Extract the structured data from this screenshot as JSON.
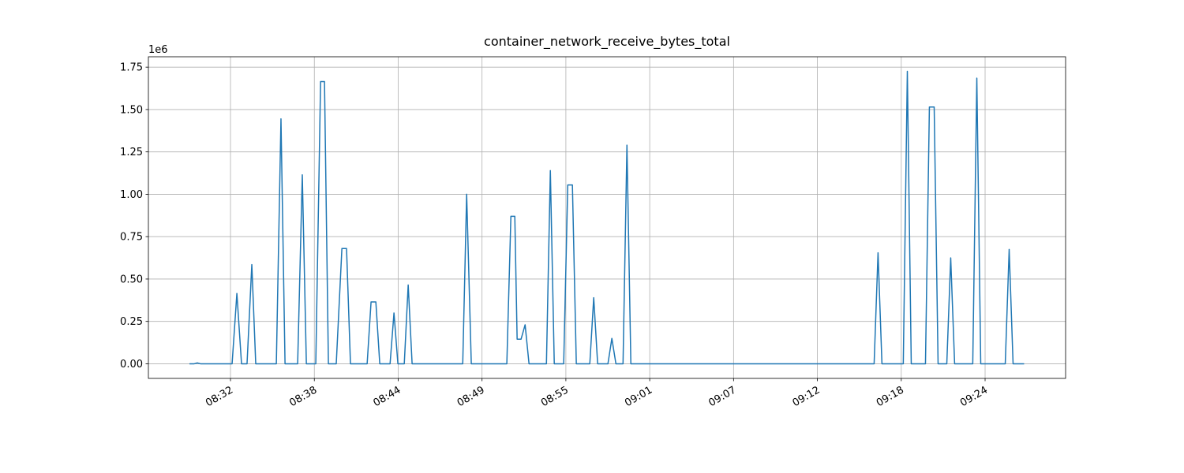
{
  "chart_data": {
    "type": "line",
    "title": "container_network_receive_bytes_total",
    "y_offset_label": "1e6",
    "x": [
      509.67,
      510.0,
      510.21,
      510.43,
      512.61,
      512.94,
      513.26,
      513.64,
      513.97,
      514.24,
      515.66,
      515.98,
      516.26,
      517.13,
      517.45,
      517.73,
      518.38,
      518.71,
      518.98,
      519.25,
      519.79,
      520.18,
      520.5,
      520.77,
      521.92,
      522.19,
      522.52,
      522.79,
      523.5,
      523.77,
      524.04,
      524.48,
      524.75,
      525.02,
      528.51,
      528.78,
      529.1,
      531.55,
      531.83,
      532.1,
      532.26,
      532.53,
      532.81,
      533.08,
      534.28,
      534.55,
      534.82,
      535.47,
      535.75,
      536.07,
      536.34,
      537.27,
      537.54,
      537.81,
      538.52,
      538.79,
      539.07,
      539.56,
      539.83,
      540.1,
      556.87,
      557.14,
      557.41,
      558.88,
      559.16,
      559.43,
      560.41,
      560.68,
      561.01,
      561.28,
      561.88,
      562.15,
      562.42,
      563.67,
      563.95,
      564.22,
      565.91,
      566.18,
      566.45,
      567.21
    ],
    "series": [
      {
        "color": "#1f77b4",
        "values": [
          0,
          0,
          5000,
          0,
          0,
          415000,
          0,
          0,
          585000,
          0,
          0,
          1445000,
          0,
          0,
          1115000,
          0,
          0,
          1665000,
          1665000,
          0,
          0,
          680000,
          680000,
          0,
          0,
          365000,
          365000,
          0,
          0,
          300000,
          0,
          0,
          465000,
          0,
          0,
          1000000,
          0,
          0,
          870000,
          870000,
          145000,
          145000,
          230000,
          0,
          0,
          1140000,
          0,
          0,
          1055000,
          1055000,
          0,
          0,
          390000,
          0,
          0,
          150000,
          0,
          0,
          1290000,
          0,
          0,
          655000,
          0,
          0,
          1725000,
          0,
          0,
          1515000,
          1515000,
          0,
          0,
          625000,
          0,
          0,
          1685000,
          0,
          0,
          675000,
          0,
          0
        ]
      }
    ],
    "xlim": [
      506.84,
      570.07
    ],
    "xticks": [
      {
        "value": 512.5,
        "label": "08:32"
      },
      {
        "value": 518.28,
        "label": "08:38"
      },
      {
        "value": 524.06,
        "label": "08:44"
      },
      {
        "value": 529.84,
        "label": "08:49"
      },
      {
        "value": 535.62,
        "label": "08:55"
      },
      {
        "value": 541.4,
        "label": "09:01"
      },
      {
        "value": 547.18,
        "label": "09:07"
      },
      {
        "value": 552.96,
        "label": "09:12"
      },
      {
        "value": 558.74,
        "label": "09:18"
      },
      {
        "value": 564.52,
        "label": "09:24"
      }
    ],
    "ylim": [
      -86250,
      1811250
    ],
    "yticks": [
      {
        "value": 0,
        "label": "0.00"
      },
      {
        "value": 250000,
        "label": "0.25"
      },
      {
        "value": 500000,
        "label": "0.50"
      },
      {
        "value": 750000,
        "label": "0.75"
      },
      {
        "value": 1000000,
        "label": "1.00"
      },
      {
        "value": 1250000,
        "label": "1.25"
      },
      {
        "value": 1500000,
        "label": "1.50"
      },
      {
        "value": 1750000,
        "label": "1.75"
      }
    ],
    "grid": true
  }
}
